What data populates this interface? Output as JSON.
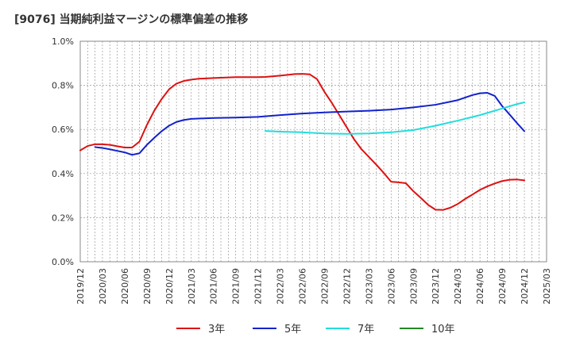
{
  "title": "[9076]  当期純利益マージンの標準偏差の推移",
  "chart_data": {
    "type": "line",
    "title": "[9076]  当期純利益マージンの標準偏差の推移",
    "xlabel": "",
    "ylabel": "",
    "ylim": [
      0.0,
      1.0
    ],
    "y_unit": "%",
    "grid": true,
    "legend_position": "bottom",
    "x_ticks": [
      "2019/12",
      "2020/03",
      "2020/06",
      "2020/09",
      "2020/12",
      "2021/03",
      "2021/06",
      "2021/09",
      "2021/12",
      "2022/03",
      "2022/06",
      "2022/09",
      "2022/12",
      "2023/03",
      "2023/06",
      "2023/09",
      "2023/12",
      "2024/03",
      "2024/06",
      "2024/09",
      "2024/12",
      "2025/03"
    ],
    "y_ticks": [
      "0.0%",
      "0.2%",
      "0.4%",
      "0.6%",
      "0.8%",
      "1.0%"
    ],
    "series": [
      {
        "name": "3年",
        "color": "#dd1111",
        "points": [
          [
            "2019/12",
            0.505
          ],
          [
            "2020/01",
            0.525
          ],
          [
            "2020/02",
            0.533
          ],
          [
            "2020/03",
            0.533
          ],
          [
            "2020/04",
            0.53
          ],
          [
            "2020/05",
            0.524
          ],
          [
            "2020/06",
            0.518
          ],
          [
            "2020/07",
            0.518
          ],
          [
            "2020/08",
            0.545
          ],
          [
            "2020/09",
            0.62
          ],
          [
            "2020/10",
            0.685
          ],
          [
            "2020/11",
            0.738
          ],
          [
            "2020/12",
            0.782
          ],
          [
            "2021/01",
            0.808
          ],
          [
            "2021/02",
            0.82
          ],
          [
            "2021/03",
            0.826
          ],
          [
            "2021/04",
            0.83
          ],
          [
            "2021/06",
            0.833
          ],
          [
            "2021/09",
            0.837
          ],
          [
            "2021/12",
            0.837
          ],
          [
            "2022/01",
            0.838
          ],
          [
            "2022/03",
            0.844
          ],
          [
            "2022/05",
            0.851
          ],
          [
            "2022/06",
            0.852
          ],
          [
            "2022/07",
            0.85
          ],
          [
            "2022/08",
            0.828
          ],
          [
            "2022/09",
            0.77
          ],
          [
            "2022/10",
            0.72
          ],
          [
            "2022/11",
            0.665
          ],
          [
            "2022/12",
            0.61
          ],
          [
            "2023/01",
            0.555
          ],
          [
            "2023/02",
            0.51
          ],
          [
            "2023/03",
            0.475
          ],
          [
            "2023/04",
            0.44
          ],
          [
            "2023/05",
            0.403
          ],
          [
            "2023/06",
            0.363
          ],
          [
            "2023/07",
            0.36
          ],
          [
            "2023/08",
            0.356
          ],
          [
            "2023/09",
            0.32
          ],
          [
            "2023/10",
            0.29
          ],
          [
            "2023/11",
            0.258
          ],
          [
            "2023/12",
            0.236
          ],
          [
            "2024/01",
            0.235
          ],
          [
            "2024/02",
            0.245
          ],
          [
            "2024/03",
            0.262
          ],
          [
            "2024/04",
            0.285
          ],
          [
            "2024/05",
            0.305
          ],
          [
            "2024/06",
            0.326
          ],
          [
            "2024/07",
            0.342
          ],
          [
            "2024/08",
            0.355
          ],
          [
            "2024/09",
            0.366
          ],
          [
            "2024/10",
            0.372
          ],
          [
            "2024/11",
            0.373
          ],
          [
            "2024/12",
            0.369
          ]
        ]
      },
      {
        "name": "5年",
        "color": "#1122cc",
        "points": [
          [
            "2020/02",
            0.52
          ],
          [
            "2020/03",
            0.516
          ],
          [
            "2020/04",
            0.51
          ],
          [
            "2020/05",
            0.503
          ],
          [
            "2020/06",
            0.496
          ],
          [
            "2020/07",
            0.485
          ],
          [
            "2020/08",
            0.492
          ],
          [
            "2020/09",
            0.53
          ],
          [
            "2020/10",
            0.562
          ],
          [
            "2020/11",
            0.592
          ],
          [
            "2020/12",
            0.617
          ],
          [
            "2021/01",
            0.634
          ],
          [
            "2021/02",
            0.643
          ],
          [
            "2021/03",
            0.648
          ],
          [
            "2021/06",
            0.652
          ],
          [
            "2021/09",
            0.654
          ],
          [
            "2021/12",
            0.657
          ],
          [
            "2022/03",
            0.665
          ],
          [
            "2022/06",
            0.672
          ],
          [
            "2022/09",
            0.677
          ],
          [
            "2022/12",
            0.681
          ],
          [
            "2023/03",
            0.685
          ],
          [
            "2023/06",
            0.69
          ],
          [
            "2023/09",
            0.7
          ],
          [
            "2023/12",
            0.712
          ],
          [
            "2024/03",
            0.733
          ],
          [
            "2024/05",
            0.756
          ],
          [
            "2024/06",
            0.764
          ],
          [
            "2024/07",
            0.766
          ],
          [
            "2024/08",
            0.752
          ],
          [
            "2024/09",
            0.706
          ],
          [
            "2024/10",
            0.668
          ],
          [
            "2024/11",
            0.629
          ],
          [
            "2024/12",
            0.592
          ]
        ]
      },
      {
        "name": "7年",
        "color": "#22dddd",
        "points": [
          [
            "2022/01",
            0.593
          ],
          [
            "2022/03",
            0.59
          ],
          [
            "2022/06",
            0.587
          ],
          [
            "2022/09",
            0.582
          ],
          [
            "2022/12",
            0.58
          ],
          [
            "2023/03",
            0.582
          ],
          [
            "2023/06",
            0.587
          ],
          [
            "2023/09",
            0.597
          ],
          [
            "2023/12",
            0.617
          ],
          [
            "2024/03",
            0.64
          ],
          [
            "2024/06",
            0.665
          ],
          [
            "2024/09",
            0.695
          ],
          [
            "2024/11",
            0.715
          ],
          [
            "2024/12",
            0.723
          ]
        ]
      },
      {
        "name": "10年",
        "color": "#228822",
        "points": []
      }
    ]
  }
}
